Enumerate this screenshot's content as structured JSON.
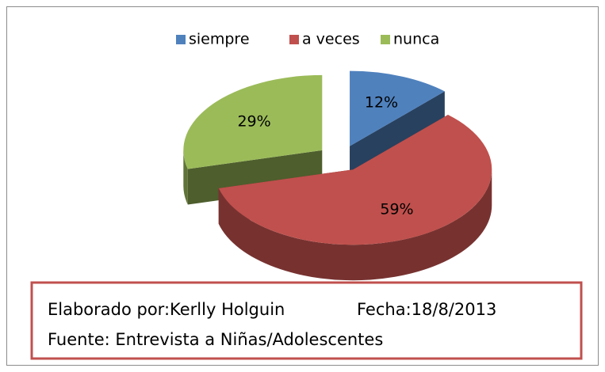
{
  "chart_data": {
    "type": "pie",
    "categories": [
      "siempre",
      "a veces",
      "nunca"
    ],
    "values": [
      12,
      59,
      29
    ],
    "value_labels": [
      "12%",
      "59%",
      "29%"
    ],
    "colors": [
      "#4f81bd",
      "#c0504d",
      "#9bbb59"
    ],
    "legend": "top",
    "annotations": [
      "Elaborado por:Kerlly Holguin",
      "Fecha:18/8/2013",
      "Fuente: Entrevista a Niñas/Adolescentes"
    ]
  }
}
